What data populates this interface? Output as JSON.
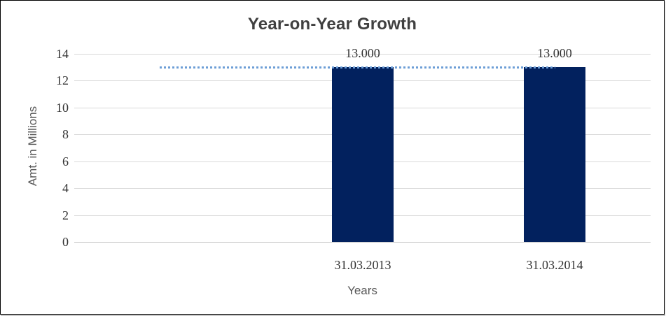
{
  "chart": {
    "title": "Year-on-Year Growth",
    "y_axis_title": "Amt. in Millions",
    "x_axis_title": "Years"
  },
  "chart_data": {
    "type": "bar",
    "title": "Year-on-Year Growth",
    "xlabel": "Years",
    "ylabel": "Amt. in Millions",
    "categories": [
      "31.03.2013",
      "31.03.2014"
    ],
    "values": [
      13,
      13
    ],
    "data_labels": [
      "13.000",
      "13.000"
    ],
    "yticks": [
      0,
      2,
      4,
      6,
      8,
      10,
      12,
      14
    ],
    "ylim": [
      0,
      14
    ],
    "grid": "horizontal",
    "legend": "none",
    "leading_blank_slot": true,
    "trendline": {
      "type": "linear",
      "value": 13,
      "style": "dotted"
    }
  },
  "colors": {
    "bar": "#02215E",
    "trendline": "#6D9ED6",
    "gridline": "#D9D9D9",
    "baseline": "#C8C8C8",
    "title_text": "#404040",
    "tick_text": "#333333",
    "axis_title_text": "#595959",
    "border": "#000000"
  }
}
